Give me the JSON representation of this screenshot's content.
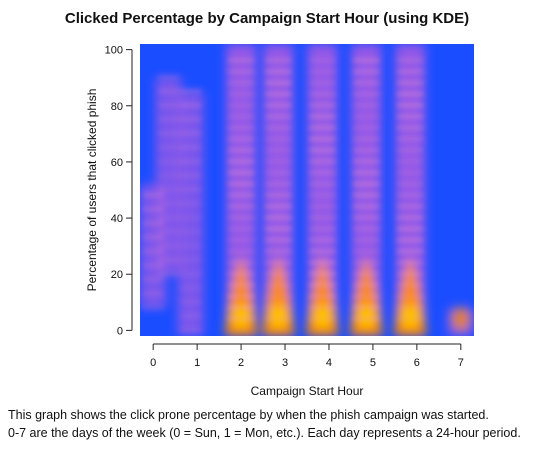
{
  "chart_data": {
    "type": "heatmap",
    "title": "Clicked Percentage by Campaign Start Hour (using KDE)",
    "xlabel": "Campaign Start Hour",
    "ylabel": "Percentage of users that clicked phish",
    "xlim": [
      -0.3,
      7.3
    ],
    "ylim": [
      -2,
      102
    ],
    "x_ticks": [
      0,
      1,
      2,
      3,
      4,
      5,
      6,
      7
    ],
    "y_ticks": [
      0,
      20,
      40,
      60,
      80,
      100
    ],
    "grid": false,
    "legend": "none",
    "color_scale": {
      "low": "#1a4dff",
      "mid": "#9b59e6",
      "high": "#ff8c00",
      "peak": "#ffd000"
    },
    "density_clusters": [
      {
        "x": 0.0,
        "y_center": 30,
        "y_spread": 22,
        "intensity": 0.35
      },
      {
        "x": 0.35,
        "y_center": 55,
        "y_spread": 35,
        "intensity": 0.3
      },
      {
        "x": 0.85,
        "y_center": 40,
        "y_spread": 45,
        "intensity": 0.35
      },
      {
        "x": 2.0,
        "y_center": 8,
        "y_spread": 12,
        "intensity": 1.0
      },
      {
        "x": 2.85,
        "y_center": 8,
        "y_spread": 12,
        "intensity": 1.0
      },
      {
        "x": 3.85,
        "y_center": 8,
        "y_spread": 12,
        "intensity": 1.0
      },
      {
        "x": 4.85,
        "y_center": 8,
        "y_spread": 12,
        "intensity": 1.0
      },
      {
        "x": 5.85,
        "y_center": 8,
        "y_spread": 12,
        "intensity": 1.0
      },
      {
        "x": 7.0,
        "y_center": 2,
        "y_spread": 6,
        "intensity": 0.55
      }
    ]
  },
  "caption": {
    "line1": "This graph shows the click prone percentage by when the phish campaign was started.",
    "line2": "0-7 are the days of the week (0 = Sun, 1 = Mon, etc.). Each day represents a 24-hour period."
  }
}
